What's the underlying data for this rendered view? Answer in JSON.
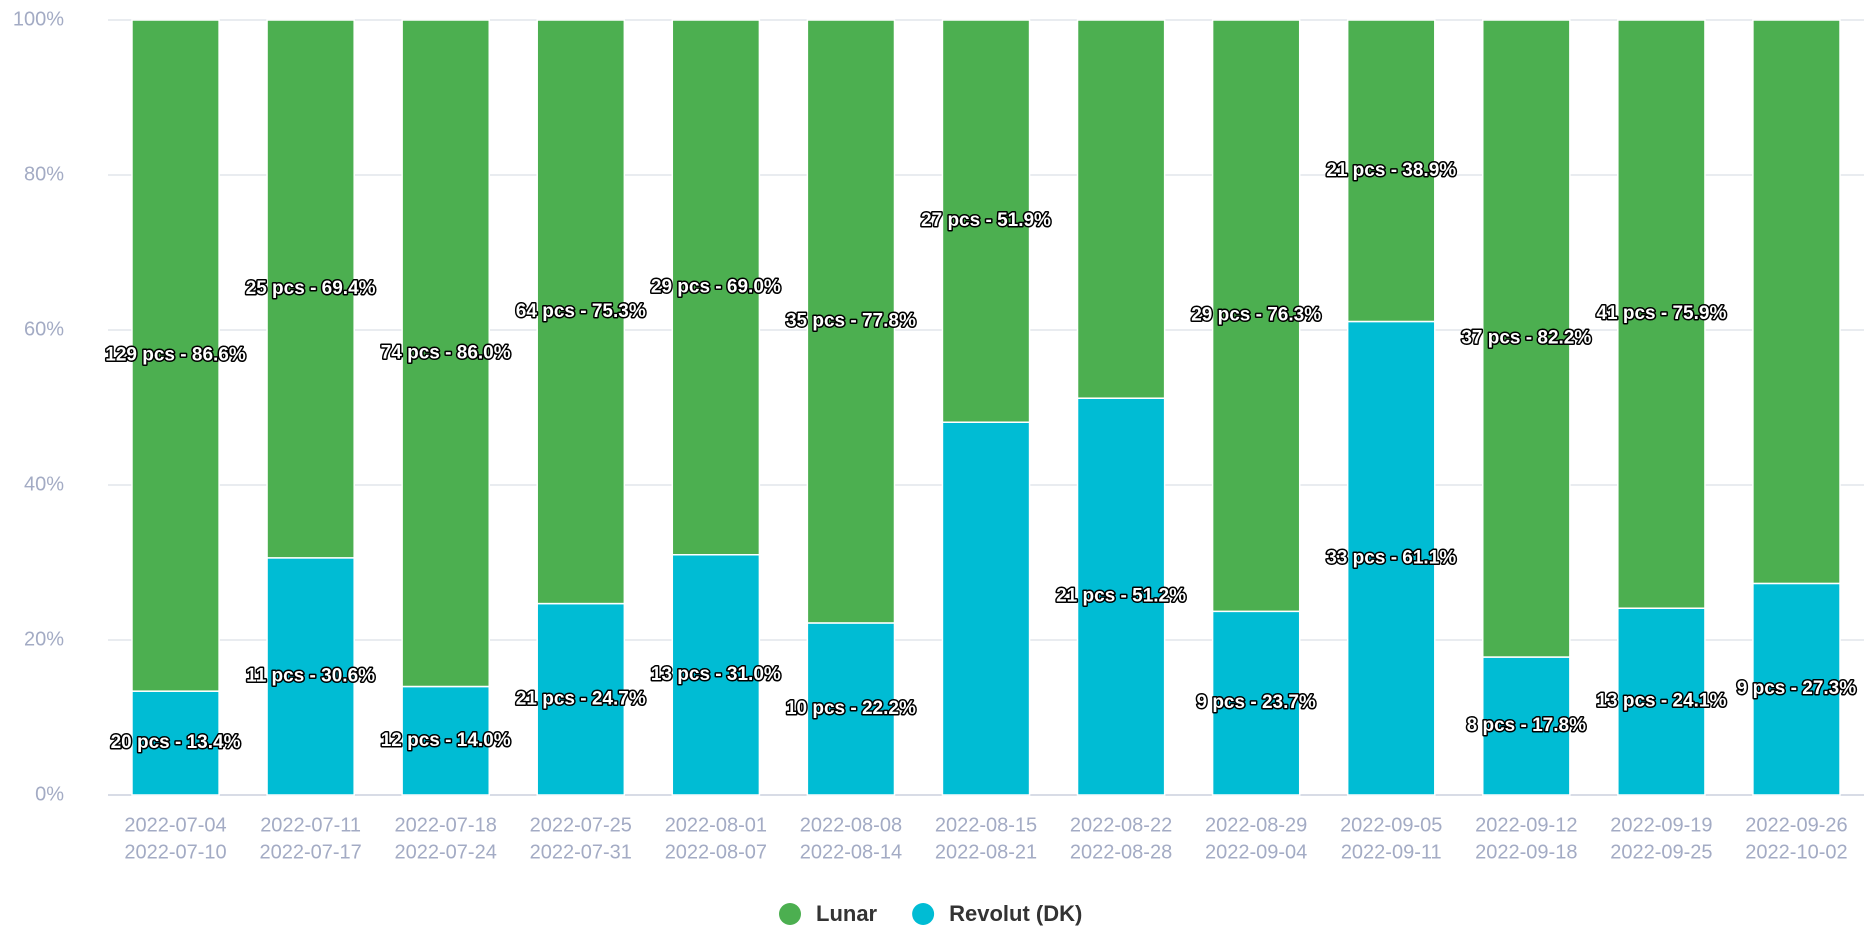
{
  "chart_data": {
    "type": "stacked_bar_percent",
    "categories": [
      [
        "2022-07-04",
        "2022-07-10"
      ],
      [
        "2022-07-11",
        "2022-07-17"
      ],
      [
        "2022-07-18",
        "2022-07-24"
      ],
      [
        "2022-07-25",
        "2022-07-31"
      ],
      [
        "2022-08-01",
        "2022-08-07"
      ],
      [
        "2022-08-08",
        "2022-08-14"
      ],
      [
        "2022-08-15",
        "2022-08-21"
      ],
      [
        "2022-08-22",
        "2022-08-28"
      ],
      [
        "2022-08-29",
        "2022-09-04"
      ],
      [
        "2022-09-05",
        "2022-09-11"
      ],
      [
        "2022-09-12",
        "2022-09-18"
      ],
      [
        "2022-09-19",
        "2022-09-25"
      ],
      [
        "2022-09-26",
        "2022-10-02"
      ]
    ],
    "series": [
      {
        "name": "Revolut (DK)",
        "color": "#00bcd4",
        "values": [
          13.4,
          30.6,
          14.0,
          24.7,
          31.0,
          22.2,
          48.1,
          51.2,
          23.7,
          61.1,
          17.8,
          24.1,
          27.3
        ],
        "value_labels": [
          "20 pcs - 13.4%",
          "11 pcs - 30.6%",
          "12 pcs - 14.0%",
          "21 pcs - 24.7%",
          "13 pcs - 31.0%",
          "10 pcs - 22.2%",
          null,
          "21 pcs - 51.2%",
          "9 pcs - 23.7%",
          "33 pcs - 61.1%",
          "8 pcs - 17.8%",
          "13 pcs - 24.1%",
          "9 pcs - 27.3%"
        ]
      },
      {
        "name": "Lunar",
        "color": "#4caf50",
        "values": [
          86.6,
          69.4,
          86.0,
          75.3,
          69.0,
          77.8,
          51.9,
          48.8,
          76.3,
          38.9,
          82.2,
          75.9,
          72.7
        ],
        "value_labels": [
          "129 pcs - 86.6%",
          "25 pcs - 69.4%",
          "74 pcs - 86.0%",
          "64 pcs - 75.3%",
          "29 pcs - 69.0%",
          "35 pcs - 77.8%",
          "27 pcs - 51.9%",
          null,
          "29 pcs - 76.3%",
          "21 pcs - 38.9%",
          "37 pcs - 82.2%",
          "41 pcs - 75.9%",
          null
        ]
      }
    ],
    "legend_order": [
      "Lunar",
      "Revolut (DK)"
    ],
    "ylim": [
      0,
      100
    ],
    "yticks": [
      {
        "value": 0,
        "label": "0%"
      },
      {
        "value": 20,
        "label": "20%"
      },
      {
        "value": 40,
        "label": "40%"
      },
      {
        "value": 60,
        "label": "60%"
      },
      {
        "value": 80,
        "label": "80%"
      },
      {
        "value": 100,
        "label": "100%"
      }
    ],
    "grid": true,
    "legend": "bottom"
  }
}
